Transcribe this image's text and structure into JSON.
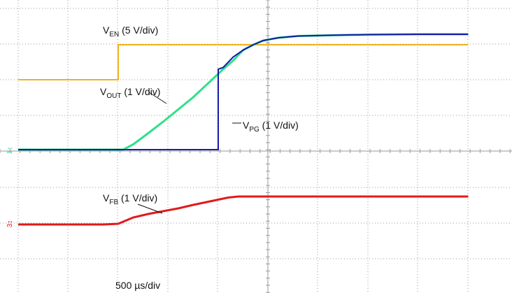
{
  "chart_data": {
    "type": "line",
    "x_unit": "µs",
    "x_range": [
      -1000,
      3500
    ],
    "timebase_label": "500 µs/div",
    "grid": true,
    "colors": {
      "background": "#ffffff",
      "grid": "#9a9a9a",
      "en": "#f2b21c",
      "out": "#2fe08a",
      "pg": "#1a1aa8",
      "fb": "#e01a1a"
    },
    "series": [
      {
        "key": "en",
        "label_main": "V",
        "label_sub": "EN",
        "label_rest": " (5 V/div)",
        "x": [
          -1000,
          0,
          0,
          3500
        ],
        "y": [
          0,
          0,
          5,
          5
        ]
      },
      {
        "key": "out",
        "label_main": "V",
        "label_sub": "OUT",
        "label_rest": " (1 V/div)",
        "x": [
          -1000,
          50,
          150,
          300,
          450,
          600,
          750,
          900,
          1050,
          1150,
          1250,
          1350,
          1450,
          1600,
          1800,
          2100,
          2500,
          3000,
          3500
        ],
        "y": [
          0,
          0,
          0.15,
          0.47,
          0.8,
          1.15,
          1.5,
          1.9,
          2.3,
          2.55,
          2.85,
          3.0,
          3.12,
          3.2,
          3.25,
          3.27,
          3.29,
          3.3,
          3.3
        ]
      },
      {
        "key": "pg",
        "label_main": "V",
        "label_sub": "PG",
        "label_rest": " (1 V/div)",
        "x": [
          -1000,
          1000,
          1000,
          1050,
          1150,
          1250,
          1350,
          1450,
          1600,
          1800,
          2100,
          2500,
          3000,
          3500
        ],
        "y": [
          0,
          0,
          2.3,
          2.35,
          2.65,
          2.85,
          3.0,
          3.12,
          3.2,
          3.25,
          3.27,
          3.29,
          3.3,
          3.3
        ]
      },
      {
        "key": "fb",
        "label_main": "V",
        "label_sub": "FB",
        "label_rest": " (1 V/div)",
        "x": [
          -1000,
          -550,
          -150,
          0,
          150,
          300,
          450,
          600,
          750,
          900,
          1050,
          1100,
          1200,
          3500
        ],
        "y": [
          0,
          0,
          0,
          0.02,
          0.2,
          0.3,
          0.38,
          0.46,
          0.56,
          0.65,
          0.74,
          0.77,
          0.8,
          0.8
        ]
      }
    ]
  }
}
